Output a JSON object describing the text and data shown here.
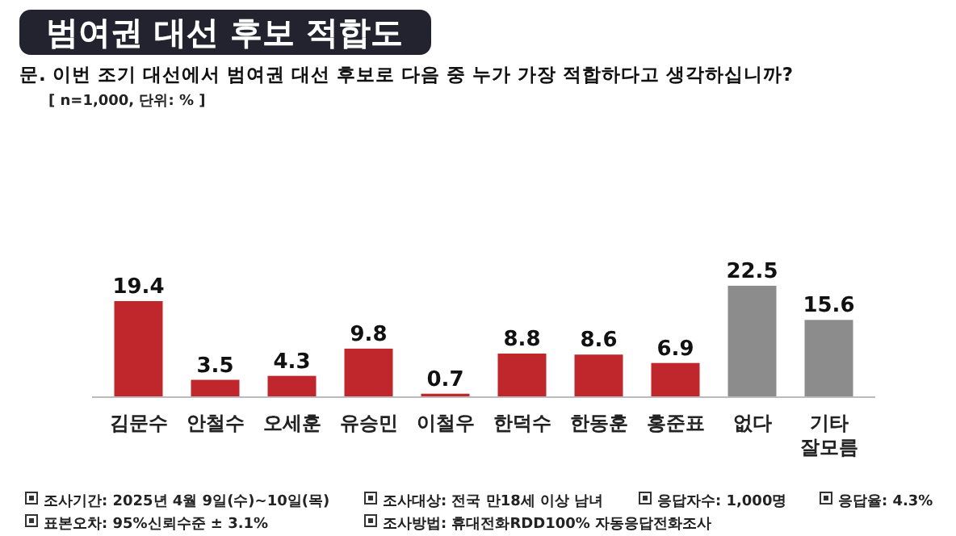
{
  "chart_data": {
    "type": "bar",
    "title": "범여권 대선 후보 적합도",
    "subtitle": "문. 이번 조기 대선에서 범여권 대선 후보로 다음 중 누가 가장 적합하다고 생각하십니까?",
    "annotations": [
      "[ n=1,000, 단위: % ]",
      "조사기간: 2025년 4월 9일(수)~10일(목)",
      "조사대상: 전국 만18세 이상 남녀",
      "응답자수: 1,000명",
      "응답율: 4.3%",
      "표본오차: 95%신뢰수준 ± 3.1%",
      "조사방법: 휴대전화RDD100% 자동응답전화조사"
    ],
    "categories": [
      "김문수",
      "안철수",
      "오세훈",
      "유승민",
      "이철우",
      "한덕수",
      "한동훈",
      "홍준표",
      "없다",
      "기타\n잘모름"
    ],
    "values": [
      19.4,
      3.5,
      4.3,
      9.8,
      0.7,
      8.8,
      8.6,
      6.9,
      22.5,
      15.6
    ],
    "colors": [
      "#c0272d",
      "#c0272d",
      "#c0272d",
      "#c0272d",
      "#c0272d",
      "#c0272d",
      "#c0272d",
      "#c0272d",
      "#8c8c8c",
      "#8c8c8c"
    ],
    "data_labels": true
  }
}
